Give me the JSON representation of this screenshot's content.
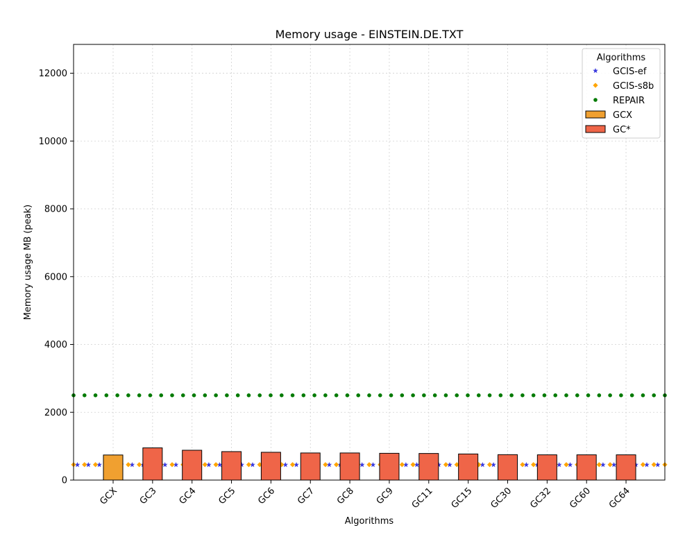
{
  "chart_data": {
    "type": "bar",
    "title": "Memory usage -  EINSTEIN.DE.TXT",
    "xlabel": "Algorithms",
    "ylabel": "Memory usage MB (peak)",
    "ylim": [
      0,
      12850
    ],
    "yticks": [
      0,
      2000,
      4000,
      6000,
      8000,
      10000,
      12000
    ],
    "grid": true,
    "legend_position": "top-right",
    "legend_title": "Algorithms",
    "categories": [
      "GCX",
      "GC3",
      "GC4",
      "GC5",
      "GC6",
      "GC7",
      "GC8",
      "GC9",
      "GC11",
      "GC15",
      "GC30",
      "GC32",
      "GC60",
      "GC64"
    ],
    "bars": {
      "values": [
        740,
        950,
        880,
        840,
        820,
        800,
        800,
        790,
        785,
        770,
        750,
        745,
        745,
        745
      ],
      "legend": [
        {
          "name": "GCX",
          "color": "#f0a030"
        },
        {
          "name": "GC*",
          "color": "#ef6548"
        }
      ]
    },
    "reference_series": [
      {
        "name": "GCIS-ef",
        "marker": "star",
        "color": "#3b3bdf",
        "value": 450
      },
      {
        "name": "GCIS-s8b",
        "marker": "diamond",
        "color": "#ffa500",
        "value": 455
      },
      {
        "name": "REPAIR",
        "marker": "circle",
        "color": "#007a00",
        "value": 2500
      }
    ]
  }
}
